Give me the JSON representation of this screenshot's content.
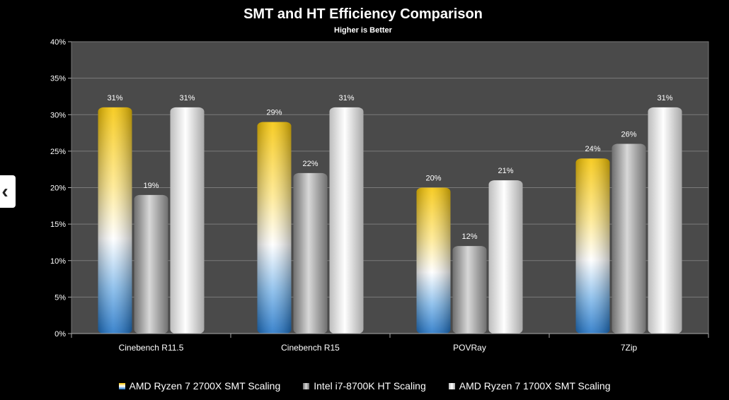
{
  "chart_data": {
    "type": "bar",
    "title": "SMT and HT Efficiency Comparison",
    "subtitle": "Higher is Better",
    "categories": [
      "Cinebench R11.5",
      "Cinebench R15",
      "POVRay",
      "7Zip"
    ],
    "series": [
      {
        "name": "AMD Ryzen 7 2700X SMT Scaling",
        "values": [
          31,
          29,
          20,
          24
        ],
        "labels": [
          "31%",
          "29%",
          "20%",
          "24%"
        ],
        "color": "#f2b705"
      },
      {
        "name": "Intel i7-8700K HT Scaling",
        "values": [
          19,
          22,
          12,
          26
        ],
        "labels": [
          "19%",
          "22%",
          "12%",
          "26%"
        ],
        "color": "#a0a0a0"
      },
      {
        "name": "AMD Ryzen 7 1700X SMT Scaling",
        "values": [
          31,
          31,
          21,
          31
        ],
        "labels": [
          "31%",
          "31%",
          "21%",
          "31%"
        ],
        "color": "#e8e8e8"
      }
    ],
    "ylim": [
      0,
      40
    ],
    "yticks": [
      "0%",
      "5%",
      "10%",
      "15%",
      "20%",
      "25%",
      "30%",
      "35%",
      "40%"
    ],
    "grid": true,
    "legend_position": "bottom",
    "plot_background": "#4a4a4a"
  },
  "nav": {
    "prev_icon": "chevron-left-icon",
    "prev_glyph": "‹"
  }
}
